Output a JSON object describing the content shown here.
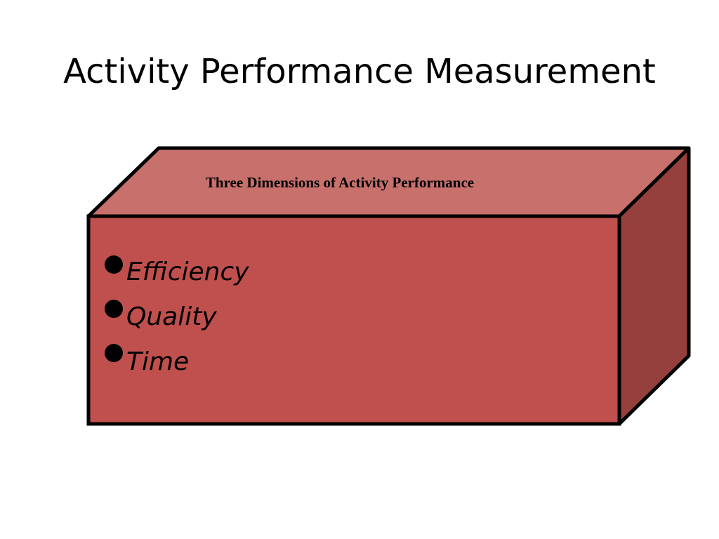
{
  "title": "Activity Performance Measurement",
  "box": {
    "heading": "Three Dimensions of Activity Performance",
    "bullets": [
      "Efficiency",
      "Quality",
      "Time"
    ]
  }
}
